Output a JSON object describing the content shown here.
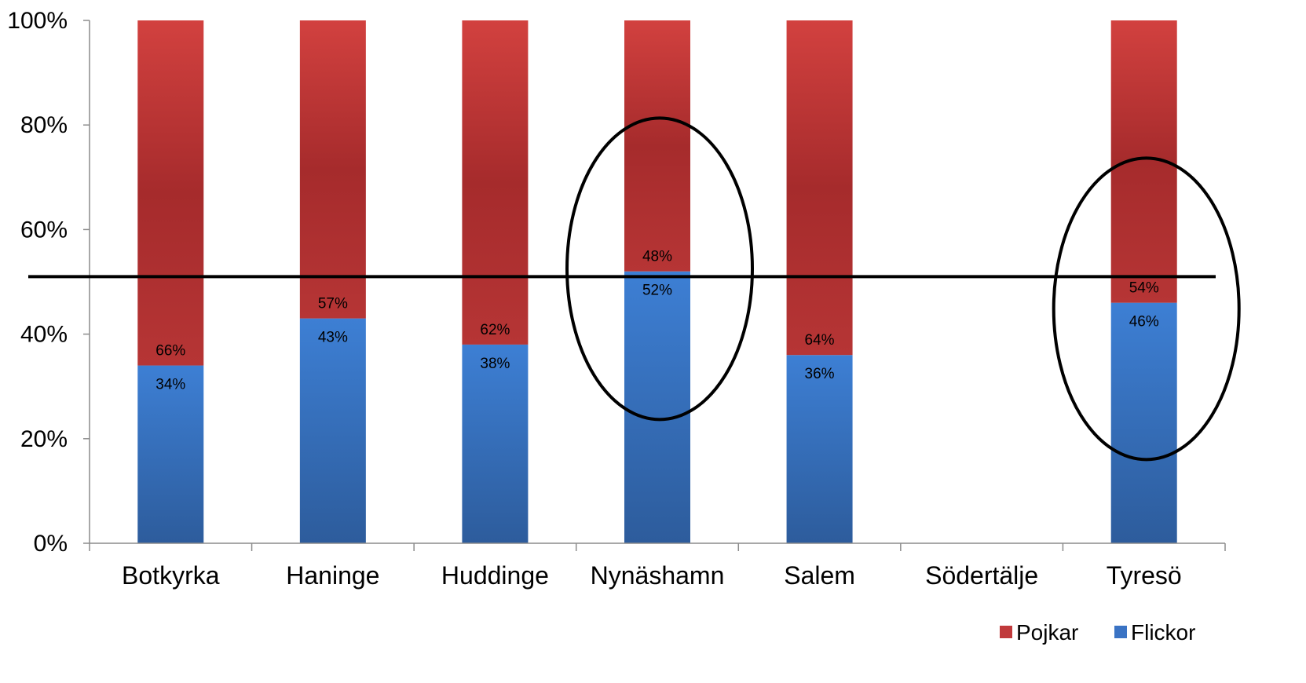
{
  "chart_data": {
    "type": "bar",
    "stacked": true,
    "percent_scale": true,
    "categories": [
      "Botkyrka",
      "Haninge",
      "Huddinge",
      "Nynäshamn",
      "Salem",
      "Södertälje",
      "Tyresö"
    ],
    "series": [
      {
        "name": "Flickor",
        "color": "#3a73c4",
        "values": [
          34,
          43,
          38,
          52,
          36,
          null,
          46
        ],
        "labels": [
          "34%",
          "43%",
          "38%",
          "52%",
          "36%",
          "",
          "46%"
        ]
      },
      {
        "name": "Pojkar",
        "color": "#c0393b",
        "values": [
          66,
          57,
          62,
          48,
          64,
          null,
          54
        ],
        "labels": [
          "66%",
          "57%",
          "62%",
          "48%",
          "64%",
          "",
          "54%"
        ]
      }
    ],
    "ylim": [
      0,
      100
    ],
    "yticks": [
      "0%",
      "20%",
      "40%",
      "60%",
      "80%",
      "100%"
    ],
    "reference_line": 51,
    "highlighted_categories": [
      "Nynäshamn",
      "Tyresö"
    ],
    "legend": {
      "position": "bottom-right",
      "entries": [
        "Pojkar",
        "Flickor"
      ]
    },
    "grid": false,
    "title": "",
    "xlabel": "",
    "ylabel": ""
  }
}
